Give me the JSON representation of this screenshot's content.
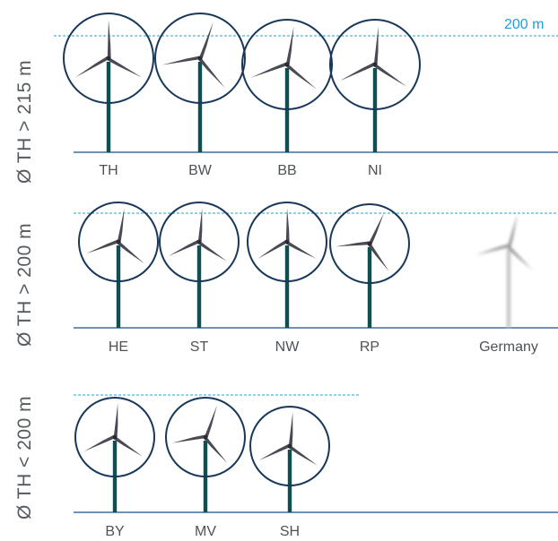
{
  "reference_label": "200 m",
  "colors": {
    "turbine": "#0f4f52",
    "circle": "#18385a",
    "ground": "#1c4e8a",
    "reference": "#1fa0d8",
    "faded": "#c6c6c6"
  },
  "rows": [
    {
      "label": "Ø TH > 215 m",
      "turbines": [
        {
          "name": "TH",
          "rotation_deg": 0
        },
        {
          "name": "BW",
          "rotation_deg": 20
        },
        {
          "name": "BB",
          "rotation_deg": 10
        },
        {
          "name": "NI",
          "rotation_deg": 5
        }
      ]
    },
    {
      "label": "Ø TH > 200 m",
      "turbines": [
        {
          "name": "HE",
          "rotation_deg": 10
        },
        {
          "name": "ST",
          "rotation_deg": 5
        },
        {
          "name": "NW",
          "rotation_deg": 0
        },
        {
          "name": "RP",
          "rotation_deg": 25
        },
        {
          "name": "Germany",
          "rotation_deg": 15,
          "faded": true
        }
      ]
    },
    {
      "label": "Ø TH < 200 m",
      "turbines": [
        {
          "name": "BY",
          "rotation_deg": 5
        },
        {
          "name": "MV",
          "rotation_deg": 20
        },
        {
          "name": "SH",
          "rotation_deg": 5
        }
      ]
    }
  ]
}
